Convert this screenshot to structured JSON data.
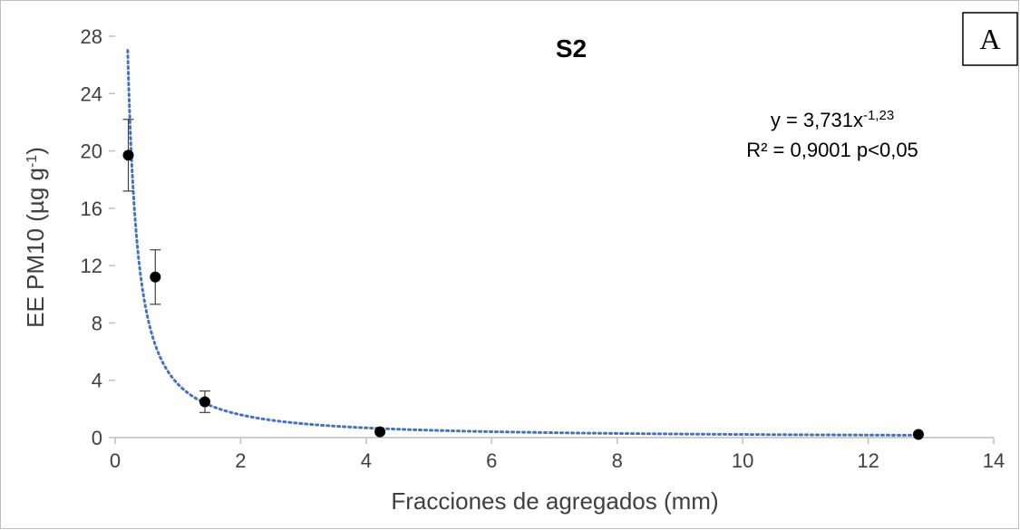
{
  "chart_data": {
    "type": "scatter",
    "title": "S2",
    "panel_label": "A",
    "xlabel": "Fracciones de agregados (mm)",
    "ylabel": {
      "main": "EE PM10 (µg g",
      "sup": "-1",
      "close": ")"
    },
    "xlim": [
      0,
      14
    ],
    "ylim": [
      0,
      28
    ],
    "x_ticks": [
      0,
      2,
      4,
      6,
      8,
      10,
      12,
      14
    ],
    "y_ticks": [
      0,
      4,
      8,
      12,
      16,
      20,
      24,
      28
    ],
    "grid": false,
    "series": [
      {
        "points": [
          {
            "x": 0.21,
            "y": 19.7,
            "err": 2.5
          },
          {
            "x": 0.64,
            "y": 11.2,
            "err": 1.9
          },
          {
            "x": 1.43,
            "y": 2.5,
            "err": 0.75
          },
          {
            "x": 4.22,
            "y": 0.4,
            "err": 0
          },
          {
            "x": 12.8,
            "y": 0.22,
            "err": 0
          }
        ]
      }
    ],
    "trendline": {
      "type": "power",
      "a": 3.731,
      "b": -1.23,
      "x_start": 0.2,
      "x_end": 12.8,
      "color": "#4472C4"
    },
    "annotation": {
      "line1_prefix": "y = 3,731x",
      "line1_sup": "-1,23",
      "line2": "R² = 0,9001  p<0,05"
    },
    "colors": {
      "axis": "#BFBFBF",
      "marker": "#000000",
      "errorbar": "#404040"
    }
  }
}
